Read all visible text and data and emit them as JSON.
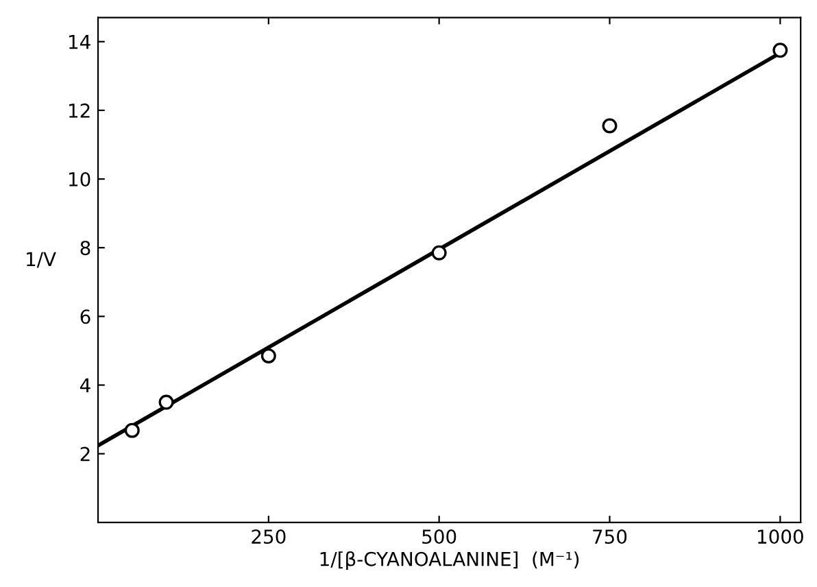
{
  "chart_data": {
    "type": "scatter",
    "xlabel": "1/[β-CYANOALANINE]  (M⁻¹)",
    "ylabel": "1/V",
    "xlim": [
      0,
      1030
    ],
    "ylim": [
      0,
      14.7
    ],
    "xticks": [
      250,
      500,
      750,
      1000
    ],
    "yticks": [
      2,
      4,
      6,
      8,
      10,
      12,
      14
    ],
    "grid": false,
    "legend": false,
    "series": [
      {
        "marker": "circle",
        "color": "#000000",
        "x": [
          50,
          100,
          250,
          500,
          750,
          1000
        ],
        "values": [
          2.68,
          3.5,
          4.85,
          7.85,
          11.55,
          13.75
        ]
      },
      {
        "type": "line",
        "marker": "none",
        "line_style": "solid",
        "color": "#000000",
        "x": [
          0,
          1000
        ],
        "values": [
          2.24,
          13.67
        ]
      }
    ]
  }
}
